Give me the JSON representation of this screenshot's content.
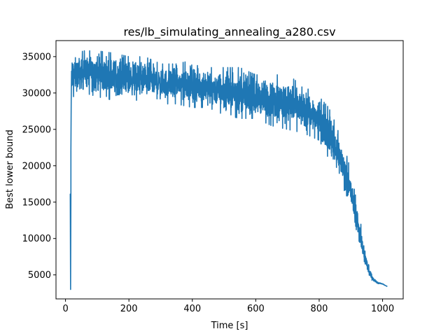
{
  "chart_data": {
    "type": "line",
    "title": "res/lb_simulating_annealing_a280.csv",
    "xlabel": "Time [s]",
    "ylabel": "Best lower bound",
    "xlim": [
      -30,
      1065
    ],
    "ylim": [
      1700,
      37200
    ],
    "xticks": [
      0,
      200,
      400,
      600,
      800,
      1000
    ],
    "yticks": [
      5000,
      10000,
      15000,
      20000,
      25000,
      30000,
      35000
    ],
    "grid": false,
    "legend": "none",
    "series": [
      {
        "color": "#1f77b4",
        "envelope_x": [
          15,
          30,
          60,
          100,
          150,
          200,
          250,
          300,
          350,
          400,
          450,
          500,
          550,
          600,
          650,
          700,
          750,
          800,
          830,
          850,
          870,
          890,
          910,
          925,
          940,
          955,
          970,
          985,
          1000,
          1015
        ],
        "envelope_low": [
          29500,
          29500,
          30000,
          29500,
          29000,
          29000,
          29000,
          28500,
          28500,
          28000,
          28000,
          27000,
          26500,
          26500,
          25500,
          25000,
          24500,
          23500,
          21000,
          19500,
          17500,
          15500,
          12000,
          9000,
          6500,
          4800,
          4100,
          3800,
          3700,
          3400
        ],
        "envelope_high": [
          35500,
          35500,
          35800,
          35800,
          35500,
          35000,
          35000,
          34000,
          34000,
          34500,
          33500,
          33500,
          33500,
          32500,
          32500,
          32500,
          31000,
          29500,
          28000,
          26000,
          23500,
          21000,
          17000,
          13500,
          10000,
          6500,
          4800,
          4000,
          3800,
          3400
        ],
        "spike_x": [
          15,
          15,
          16,
          17,
          17,
          18,
          19,
          20
        ],
        "spike_y": [
          15800,
          16100,
          3000,
          16000,
          22000,
          29000,
          33000,
          31000
        ]
      }
    ]
  }
}
